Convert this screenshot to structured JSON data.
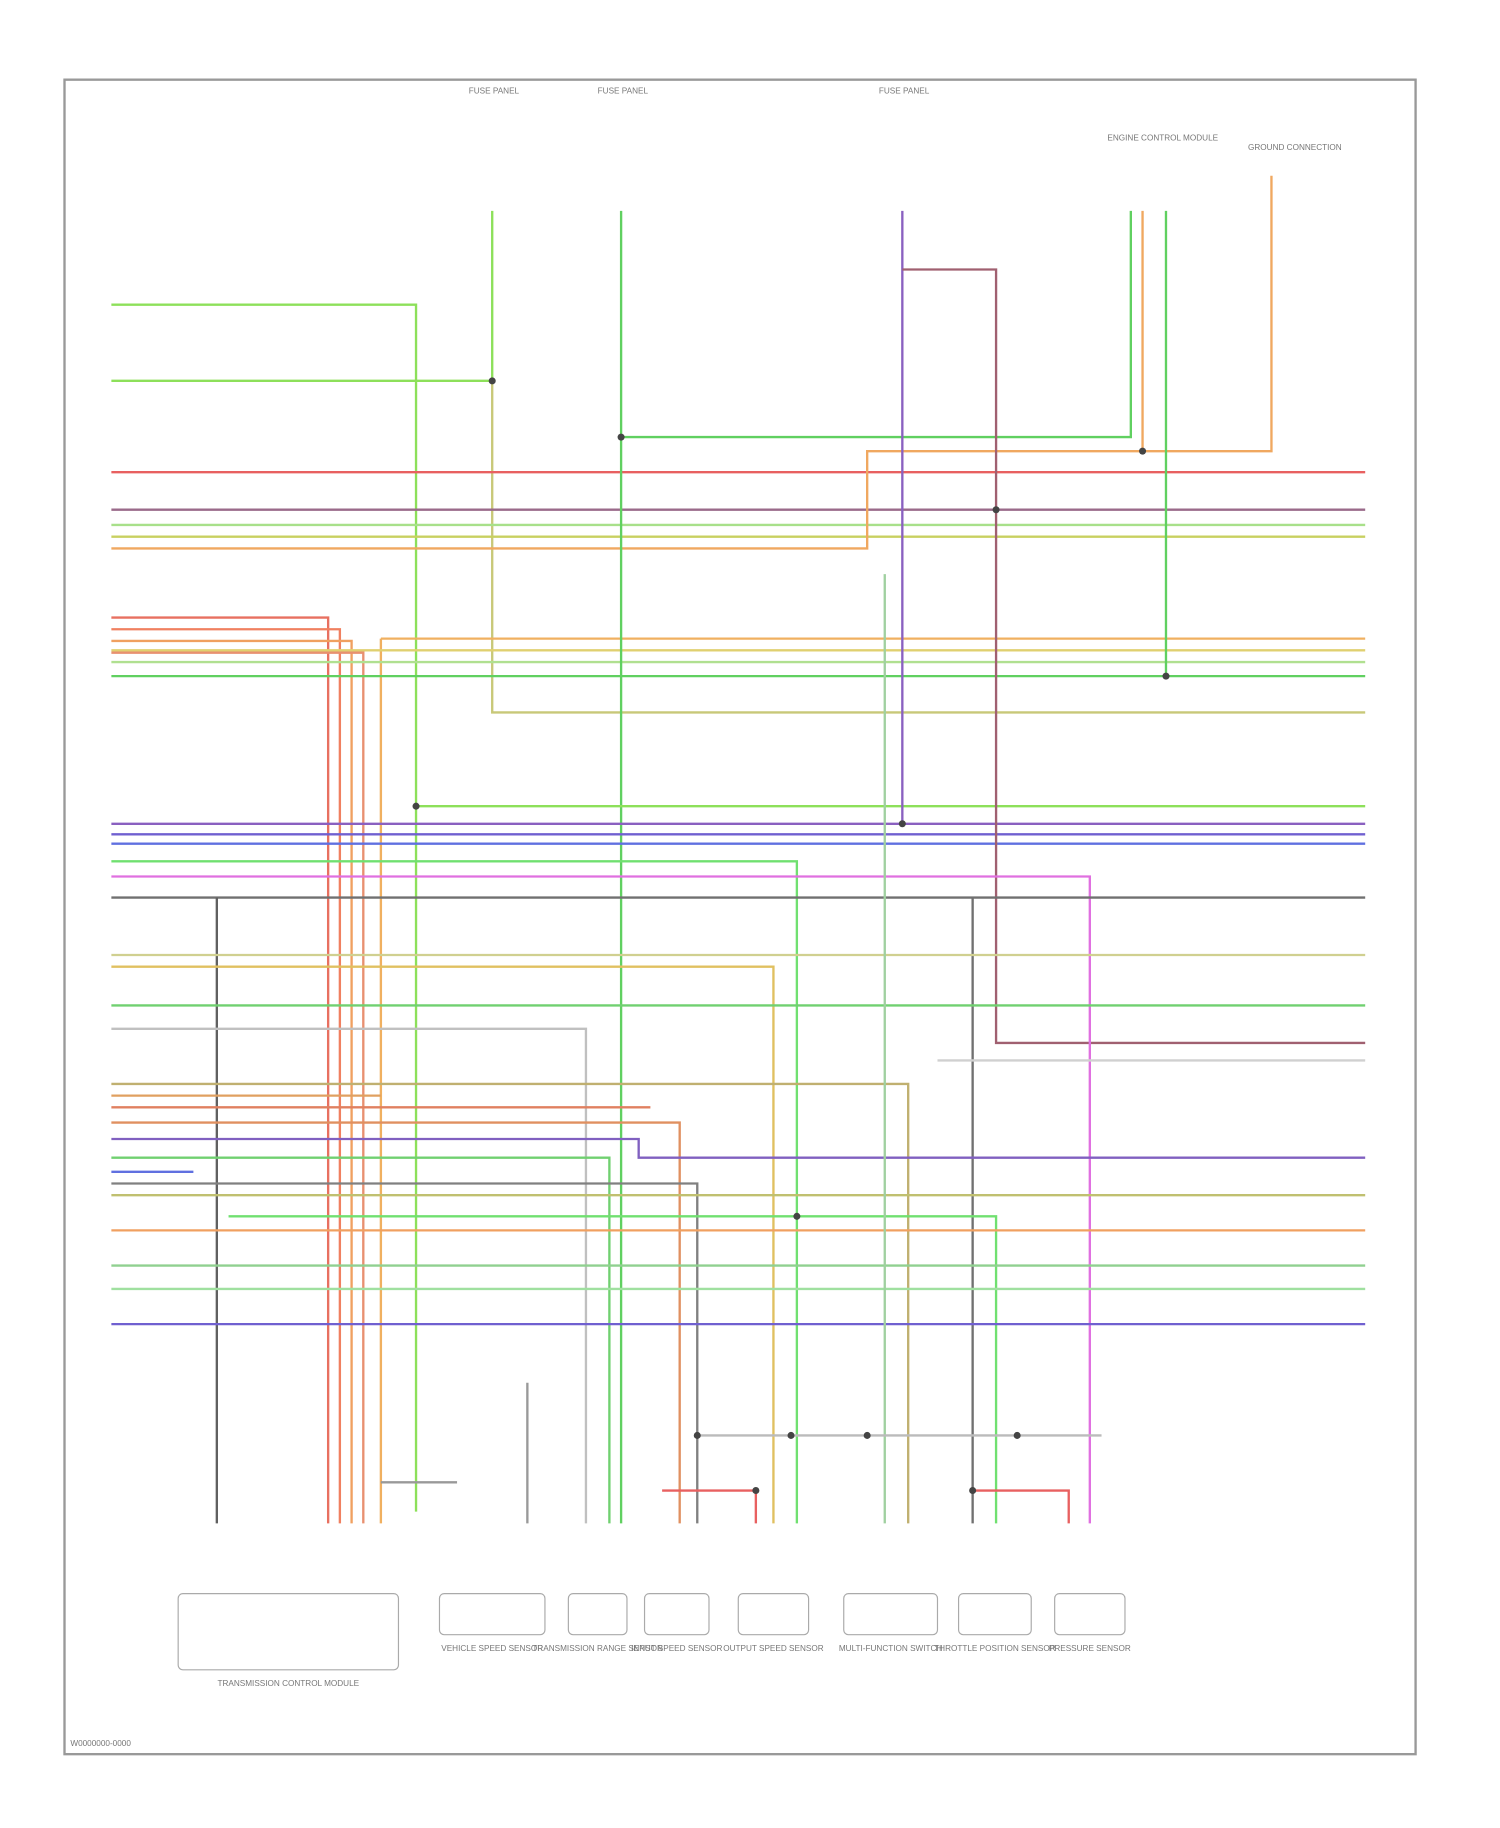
{
  "header": {
    "top_labels": [
      "FUSE PANEL",
      "FUSE PANEL",
      "FUSE PANEL",
      "ENGINE CONTROL MODULE",
      "GROUND CONNECTION"
    ]
  },
  "components": [
    {
      "label": "TRANSMISSION CONTROL MODULE"
    },
    {
      "label": "VEHICLE SPEED SENSOR"
    },
    {
      "label": "TRANSMISSION RANGE SENSOR"
    },
    {
      "label": "INPUT SPEED SENSOR"
    },
    {
      "label": "OUTPUT SPEED SENSOR"
    },
    {
      "label": "MULTI-FUNCTION SWITCH"
    },
    {
      "label": "THROTTLE POSITION SENSOR"
    },
    {
      "label": "PRESSURE SENSOR"
    }
  ],
  "footer": {
    "code": "W0000000-0000"
  }
}
